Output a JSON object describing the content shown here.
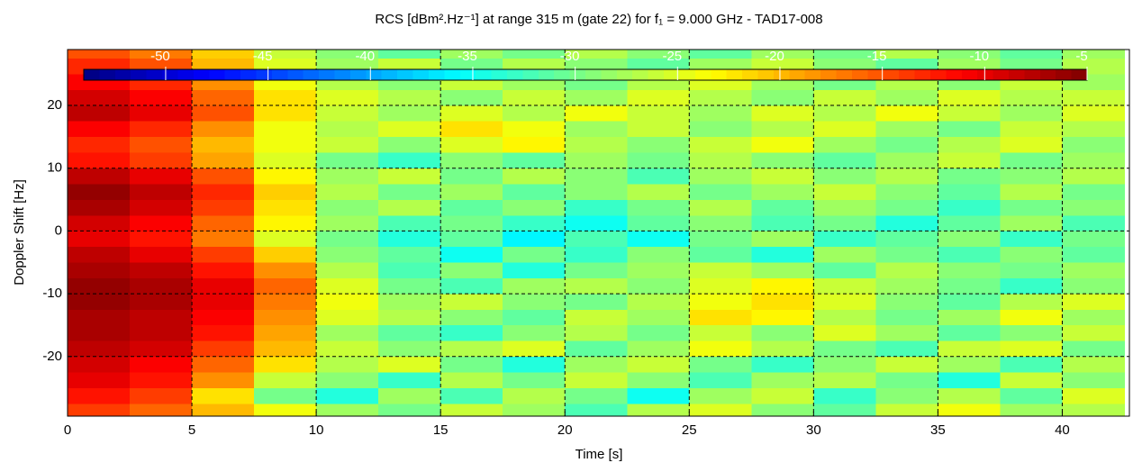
{
  "chart_data": {
    "type": "heatmap",
    "title": "RCS [dBm².Hz⁻¹] at range 315 m (gate 22) for f₁ = 9.000 GHz - TAD17-008",
    "x_label": "Time [s]",
    "y_label": "Doppler Shift [Hz]",
    "xlim": [
      0,
      42.7
    ],
    "ylim": [
      -29.5,
      28.9
    ],
    "xticks": [
      0,
      5,
      10,
      15,
      20,
      25,
      30,
      35,
      40
    ],
    "yticks": [
      -20,
      -10,
      0,
      10,
      20
    ],
    "grid": true,
    "colormap": "jet",
    "clim": [
      -54,
      -5
    ],
    "cticks": [
      -50,
      -45,
      -40,
      -35,
      -30,
      -25,
      -20,
      -15,
      -10,
      -5
    ],
    "x": [
      1.25,
      3.75,
      6.25,
      8.75,
      11.25,
      13.75,
      16.25,
      18.75,
      21.25,
      23.75,
      26.25,
      28.75,
      31.25,
      33.75,
      36.25,
      38.75,
      41.25
    ],
    "y": [
      -28.75,
      -26.25,
      -23.75,
      -21.25,
      -18.75,
      -16.25,
      -13.75,
      -11.25,
      -8.75,
      -6.25,
      -3.75,
      -1.25,
      1.25,
      3.75,
      6.25,
      8.75,
      11.25,
      13.75,
      16.25,
      18.75,
      21.25,
      23.75,
      26.25,
      28.75
    ],
    "z": [
      [
        -14,
        -16,
        -20,
        -24,
        -28,
        -30,
        -26,
        -28,
        -32,
        -27,
        -25,
        -29,
        -31,
        -26,
        -24,
        -28,
        -27
      ],
      [
        -12,
        -14,
        -22,
        -30,
        -34,
        -28,
        -32,
        -27,
        -30,
        -35,
        -28,
        -26,
        -33,
        -29,
        -27,
        -31,
        -25
      ],
      [
        -10,
        -12,
        -18,
        -26,
        -29,
        -33,
        -27,
        -30,
        -26,
        -29,
        -32,
        -28,
        -27,
        -30,
        -34,
        -26,
        -29
      ],
      [
        -9,
        -11,
        -16,
        -22,
        -27,
        -25,
        -30,
        -34,
        -28,
        -26,
        -30,
        -33,
        -29,
        -26,
        -28,
        -32,
        -27
      ],
      [
        -8,
        -9,
        -14,
        -20,
        -26,
        -29,
        -27,
        -25,
        -31,
        -28,
        -24,
        -27,
        -30,
        -32,
        -26,
        -25,
        -30
      ],
      [
        -7,
        -8,
        -12,
        -19,
        -28,
        -31,
        -33,
        -29,
        -27,
        -30,
        -26,
        -29,
        -25,
        -28,
        -31,
        -29,
        -26
      ],
      [
        -7,
        -8,
        -11,
        -18,
        -25,
        -27,
        -29,
        -31,
        -26,
        -28,
        -22,
        -23,
        -27,
        -30,
        -28,
        -24,
        -28
      ],
      [
        -6,
        -7,
        -10,
        -17,
        -24,
        -28,
        -26,
        -29,
        -30,
        -27,
        -24,
        -22,
        -25,
        -29,
        -31,
        -27,
        -25
      ],
      [
        -6,
        -7,
        -10,
        -16,
        -25,
        -30,
        -32,
        -28,
        -27,
        -29,
        -25,
        -23,
        -26,
        -28,
        -30,
        -33,
        -29
      ],
      [
        -7,
        -8,
        -12,
        -18,
        -27,
        -32,
        -29,
        -34,
        -30,
        -28,
        -26,
        -28,
        -31,
        -27,
        -29,
        -30,
        -28
      ],
      [
        -8,
        -10,
        -14,
        -21,
        -29,
        -31,
        -35,
        -30,
        -33,
        -29,
        -31,
        -34,
        -28,
        -30,
        -32,
        -29,
        -31
      ],
      [
        -10,
        -12,
        -17,
        -25,
        -30,
        -34,
        -31,
        -36,
        -32,
        -35,
        -30,
        -28,
        -33,
        -31,
        -29,
        -33,
        -30
      ],
      [
        -9,
        -11,
        -16,
        -23,
        -28,
        -32,
        -30,
        -33,
        -35,
        -31,
        -29,
        -32,
        -30,
        -34,
        -31,
        -28,
        -32
      ],
      [
        -7,
        -9,
        -14,
        -22,
        -29,
        -27,
        -31,
        -29,
        -33,
        -30,
        -27,
        -31,
        -28,
        -30,
        -33,
        -30,
        -29
      ],
      [
        -6,
        -8,
        -13,
        -21,
        -27,
        -30,
        -28,
        -31,
        -29,
        -27,
        -30,
        -28,
        -26,
        -29,
        -31,
        -27,
        -30
      ],
      [
        -8,
        -10,
        -15,
        -23,
        -28,
        -26,
        -30,
        -27,
        -29,
        -32,
        -28,
        -26,
        -29,
        -27,
        -30,
        -29,
        -27
      ],
      [
        -12,
        -14,
        -19,
        -25,
        -30,
        -33,
        -29,
        -31,
        -28,
        -30,
        -27,
        -29,
        -31,
        -28,
        -26,
        -30,
        -28
      ],
      [
        -13,
        -15,
        -20,
        -24,
        -26,
        -29,
        -25,
        -23,
        -27,
        -29,
        -26,
        -24,
        -28,
        -30,
        -27,
        -25,
        -29
      ],
      [
        -11,
        -13,
        -18,
        -24,
        -27,
        -25,
        -22,
        -24,
        -28,
        -26,
        -29,
        -27,
        -25,
        -28,
        -30,
        -26,
        -27
      ],
      [
        -8,
        -10,
        -15,
        -22,
        -26,
        -28,
        -25,
        -27,
        -24,
        -26,
        -28,
        -25,
        -27,
        -24,
        -26,
        -28,
        -25
      ],
      [
        -9,
        -11,
        -16,
        -22,
        -25,
        -27,
        -29,
        -26,
        -28,
        -25,
        -27,
        -29,
        -26,
        -28,
        -25,
        -27,
        -26
      ],
      [
        -11,
        -13,
        -18,
        -24,
        -27,
        -29,
        -26,
        -28,
        -30,
        -27,
        -25,
        -28,
        -30,
        -27,
        -29,
        -26,
        -28
      ],
      [
        -13,
        -15,
        -20,
        -25,
        -28,
        -26,
        -30,
        -27,
        -29,
        -31,
        -28,
        -26,
        -29,
        -31,
        -28,
        -30,
        -27
      ],
      [
        -15,
        -17,
        -21,
        -26,
        -29,
        -31,
        -28,
        -30,
        -27,
        -29,
        -31,
        -28,
        -30,
        -27,
        -29,
        -31,
        -28
      ]
    ]
  }
}
